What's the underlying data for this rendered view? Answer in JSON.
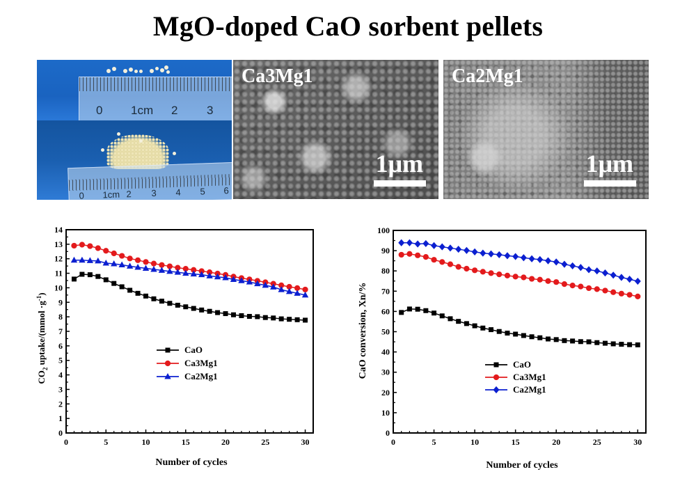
{
  "title": "MgO-doped CaO sorbent pellets",
  "photos": {
    "top_ruler_labels": [
      "0",
      "1cm",
      "2",
      "3"
    ],
    "bottom_ruler_labels": [
      "0",
      "1cm",
      "2",
      "3",
      "4",
      "5",
      "6"
    ]
  },
  "sem_images": [
    {
      "label": "Ca3Mg1",
      "scale": "1μm"
    },
    {
      "label": "Ca2Mg1",
      "scale": "1μm"
    }
  ],
  "colors": {
    "CaO": "#000000",
    "Ca3Mg1": "#e31a1c",
    "Ca2Mg1": "#0b1fd0"
  },
  "chart_data": [
    {
      "type": "line",
      "title": "",
      "xlabel": "Number of cycles",
      "ylabel": "CO2 uptake/(mmol ·g-1)",
      "ylabel_parts": {
        "a": "CO",
        "sub": "2",
        "b": " uptake/(mmol ·g",
        "sup": "-1",
        "c": ")"
      },
      "xlim": [
        0,
        31
      ],
      "ylim": [
        0,
        14
      ],
      "xticks": [
        0,
        5,
        10,
        15,
        20,
        25,
        30
      ],
      "yticks": [
        0,
        1,
        2,
        3,
        4,
        5,
        6,
        7,
        8,
        9,
        10,
        11,
        12,
        13,
        14
      ],
      "legend_position": "center-left",
      "x": [
        1,
        2,
        3,
        4,
        5,
        6,
        7,
        8,
        9,
        10,
        11,
        12,
        13,
        14,
        15,
        16,
        17,
        18,
        19,
        20,
        21,
        22,
        23,
        24,
        25,
        26,
        27,
        28,
        29,
        30
      ],
      "series": [
        {
          "name": "CaO",
          "marker": "square",
          "color": "#000000",
          "values": [
            10.6,
            10.93,
            10.9,
            10.78,
            10.55,
            10.3,
            10.07,
            9.83,
            9.62,
            9.43,
            9.24,
            9.08,
            8.93,
            8.8,
            8.69,
            8.58,
            8.47,
            8.38,
            8.29,
            8.22,
            8.14,
            8.08,
            8.03,
            8.01,
            7.95,
            7.92,
            7.86,
            7.83,
            7.8,
            7.77
          ]
        },
        {
          "name": "Ca3Mg1",
          "marker": "circle",
          "color": "#e31a1c",
          "values": [
            12.9,
            12.97,
            12.87,
            12.73,
            12.55,
            12.37,
            12.2,
            12.02,
            11.9,
            11.78,
            11.67,
            11.57,
            11.48,
            11.38,
            11.31,
            11.23,
            11.15,
            11.07,
            10.98,
            10.89,
            10.77,
            10.67,
            10.58,
            10.48,
            10.38,
            10.28,
            10.17,
            10.07,
            9.98,
            9.88
          ]
        },
        {
          "name": "Ca2Mg1",
          "marker": "triangle",
          "color": "#0b1fd0",
          "values": [
            11.9,
            11.9,
            11.87,
            11.85,
            11.7,
            11.65,
            11.58,
            11.49,
            11.41,
            11.34,
            11.27,
            11.2,
            11.13,
            11.07,
            11.0,
            10.95,
            10.9,
            10.82,
            10.75,
            10.69,
            10.57,
            10.49,
            10.4,
            10.28,
            10.17,
            10.05,
            9.87,
            9.74,
            9.62,
            9.5
          ]
        }
      ]
    },
    {
      "type": "line",
      "title": "",
      "xlabel": "Number of cycles",
      "ylabel": "CaO conversion, Xn/%",
      "xlim": [
        0,
        31
      ],
      "ylim": [
        0,
        100
      ],
      "xticks": [
        0,
        5,
        10,
        15,
        20,
        25,
        30
      ],
      "yticks": [
        0,
        10,
        20,
        30,
        40,
        50,
        60,
        70,
        80,
        90,
        100
      ],
      "legend_position": "center-left",
      "x": [
        1,
        2,
        3,
        4,
        5,
        6,
        7,
        8,
        9,
        10,
        11,
        12,
        13,
        14,
        15,
        16,
        17,
        18,
        19,
        20,
        21,
        22,
        23,
        24,
        25,
        26,
        27,
        28,
        29,
        30
      ],
      "series": [
        {
          "name": "CaO",
          "marker": "square",
          "color": "#000000",
          "values": [
            59.5,
            61.2,
            61.1,
            60.4,
            59.2,
            57.8,
            56.4,
            55.1,
            54.0,
            52.9,
            51.8,
            51.0,
            50.1,
            49.3,
            48.8,
            48.1,
            47.5,
            47.0,
            46.4,
            46.1,
            45.6,
            45.4,
            45.1,
            45.0,
            44.6,
            44.3,
            44.0,
            43.8,
            43.6,
            43.5
          ]
        },
        {
          "name": "Ca3Mg1",
          "marker": "circle",
          "color": "#e31a1c",
          "values": [
            88.0,
            88.4,
            87.7,
            86.9,
            85.5,
            84.4,
            83.3,
            82.0,
            81.1,
            80.3,
            79.6,
            78.9,
            78.3,
            77.7,
            77.2,
            76.8,
            76.1,
            75.7,
            75.0,
            74.5,
            73.5,
            72.8,
            72.3,
            71.5,
            71.0,
            70.3,
            69.5,
            68.8,
            68.2,
            67.4
          ]
        },
        {
          "name": "Ca2Mg1",
          "marker": "diamond",
          "color": "#0b1fd0",
          "values": [
            93.9,
            93.9,
            93.3,
            93.5,
            92.5,
            91.9,
            91.3,
            90.7,
            90.1,
            89.4,
            88.8,
            88.4,
            88.0,
            87.5,
            87.1,
            86.5,
            86.0,
            85.6,
            85.0,
            84.4,
            83.3,
            82.5,
            81.7,
            80.6,
            80.0,
            79.0,
            77.9,
            76.8,
            75.9,
            74.9
          ]
        }
      ]
    }
  ]
}
